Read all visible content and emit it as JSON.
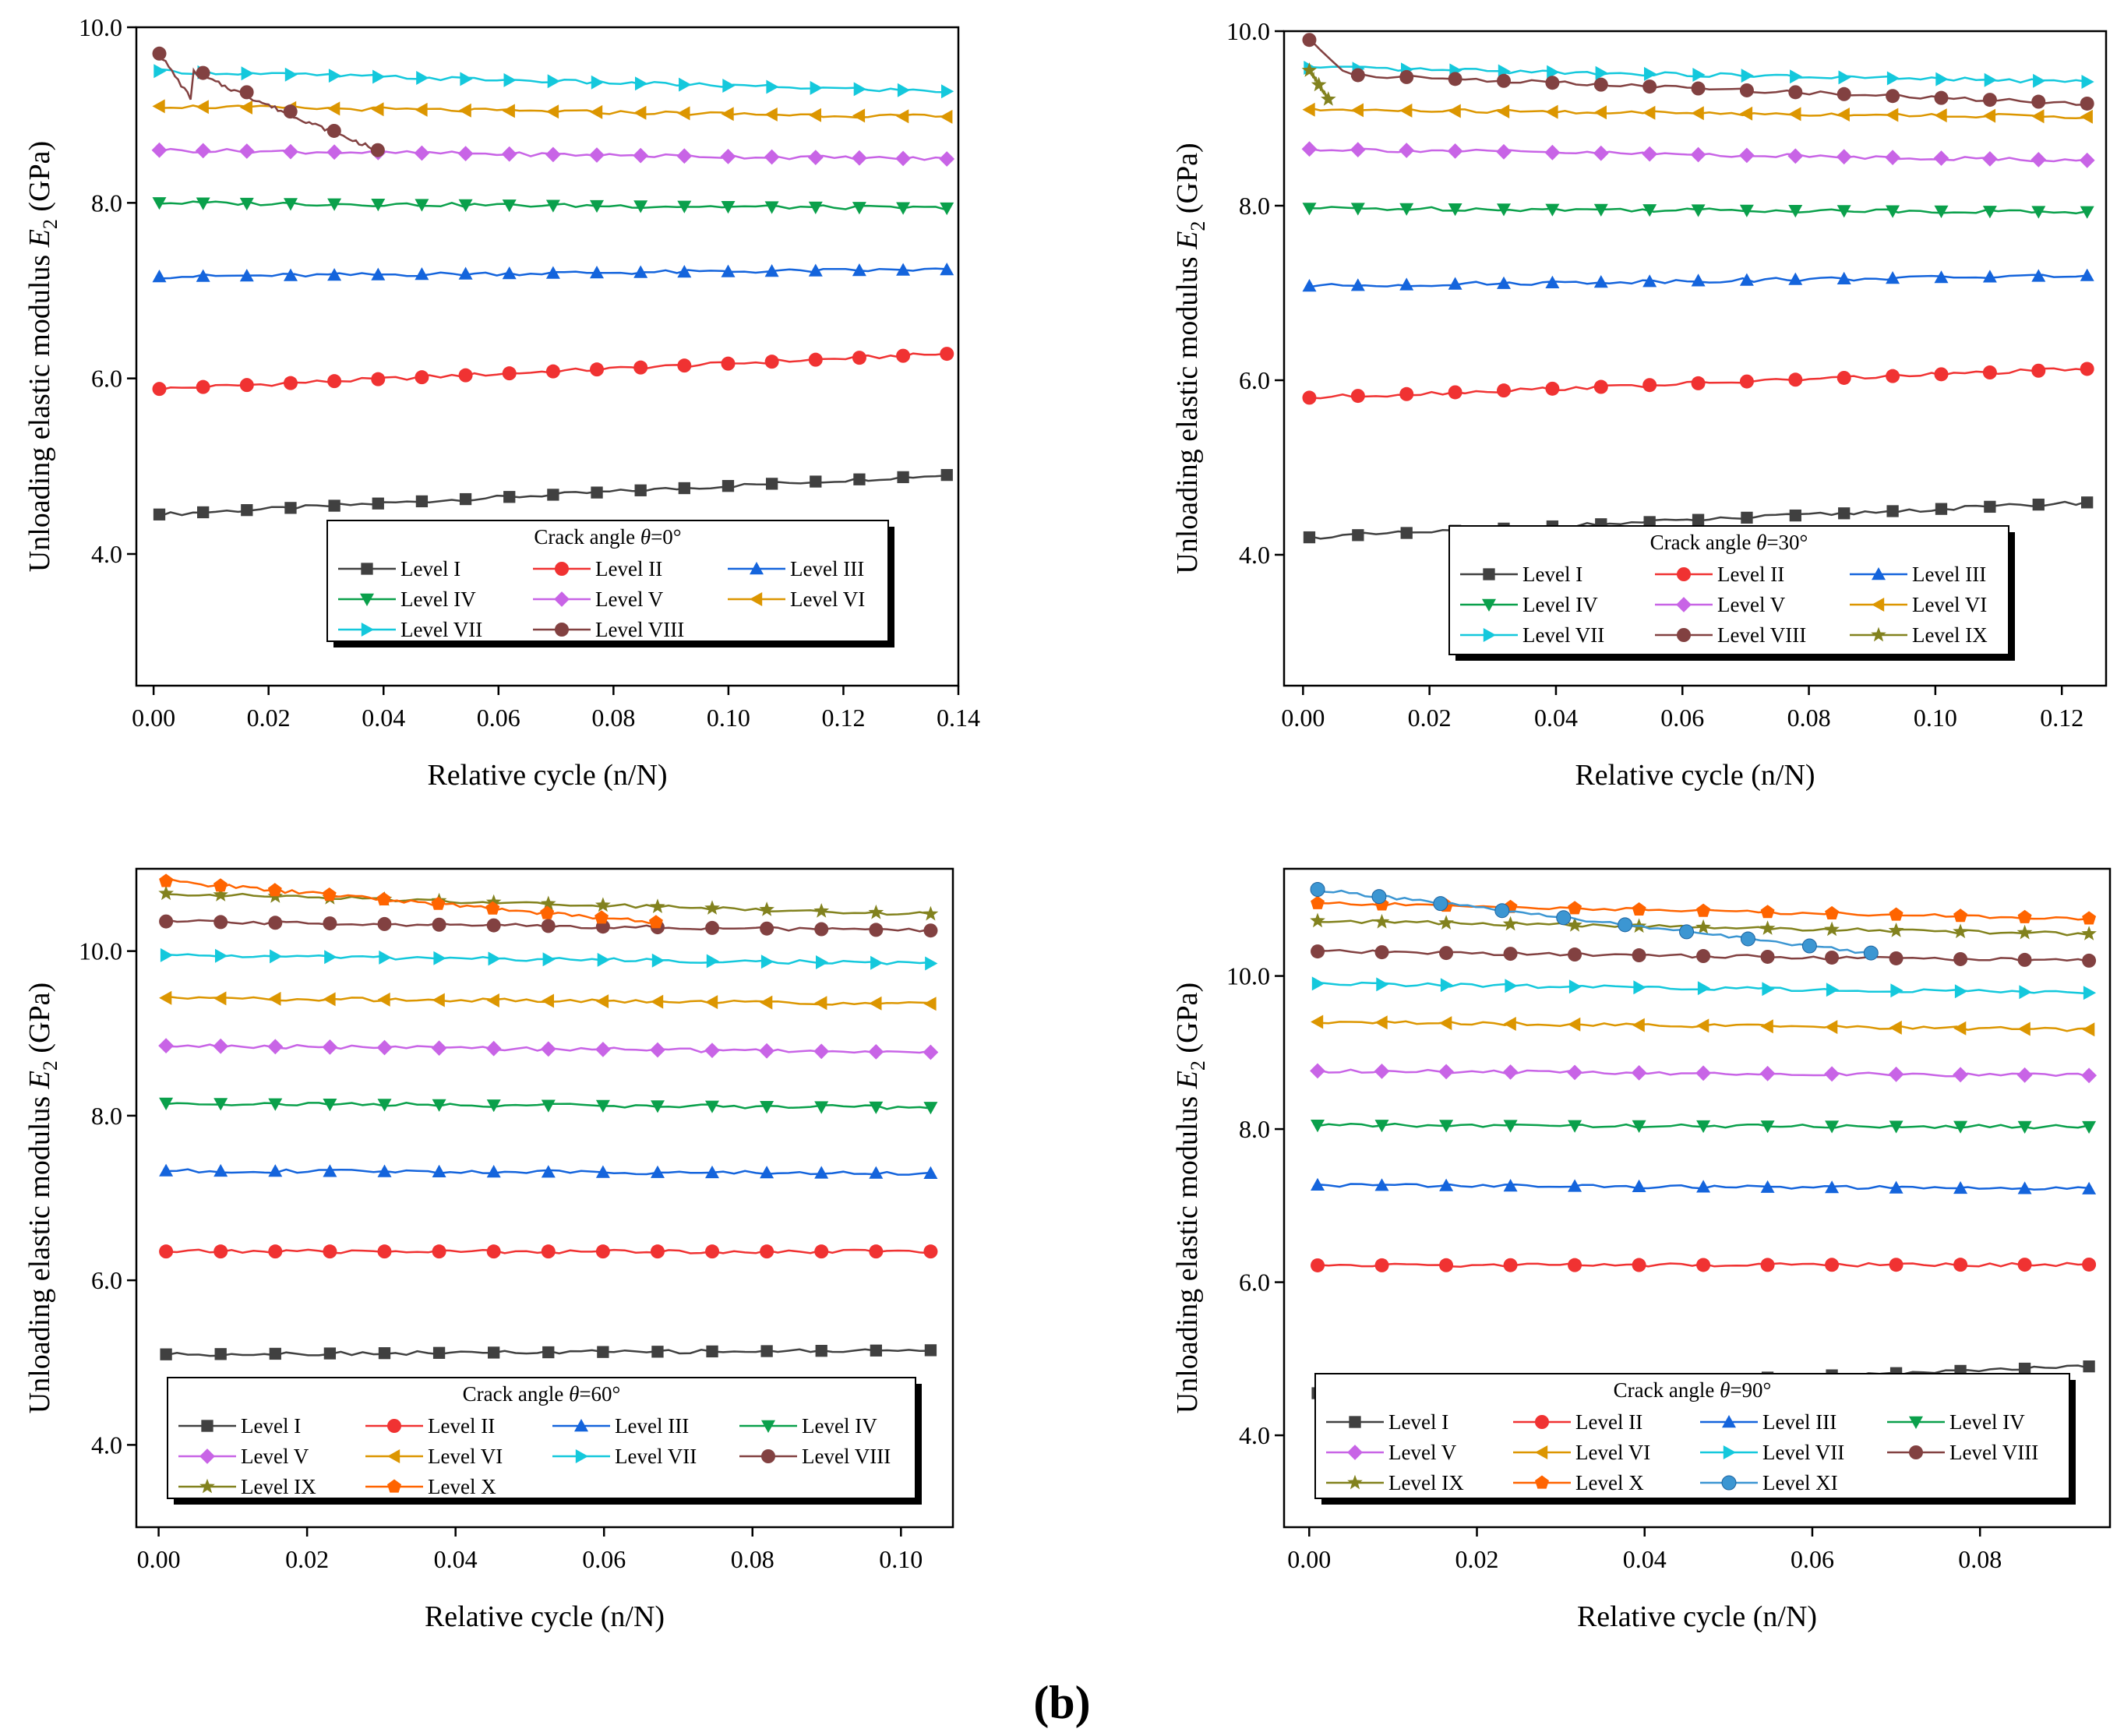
{
  "figure_label": "(b)",
  "colors": {
    "Level I": "#404040",
    "Level II": "#f03232",
    "Level III": "#1464dc",
    "Level IV": "#0aa04b",
    "Level V": "#c864e6",
    "Level VI": "#dc9600",
    "Level VII": "#14c8dc",
    "Level VIII": "#824141",
    "Level IX": "#82821e",
    "Level X": "#ff6400",
    "Level XI": "#3c96d2"
  },
  "chart_data": [
    {
      "type": "line",
      "id": "theta0",
      "title": "Crack angle θ=0°",
      "title_prefix": "Crack angle ",
      "title_var": "θ",
      "title_suffix": "=0°",
      "xlabel": "Relative cycle (n/N)",
      "ylabel_main": "Unloading elastic modulus ",
      "ylabel_var": "E",
      "ylabel_sub": "2",
      "ylabel_unit": " (GPa)",
      "xlim": [
        -0.003,
        0.14
      ],
      "ylim": [
        2.5,
        10.0
      ],
      "xticks": [
        "0.00",
        "0.02",
        "0.04",
        "0.06",
        "0.08",
        "0.10",
        "0.12",
        "0.14"
      ],
      "xtick_values": [
        0,
        0.02,
        0.04,
        0.06,
        0.08,
        0.1,
        0.12,
        0.14
      ],
      "yticks": [
        "4.0",
        "6.0",
        "8.0",
        "10.0"
      ],
      "ytick_values": [
        4.0,
        6.0,
        8.0,
        10.0
      ],
      "legend_columns": 3,
      "legend_location": "bottom-right",
      "series": [
        {
          "name": "Level I",
          "marker": "square",
          "x_start": 0.001,
          "x_end": 0.138,
          "y_start": 4.45,
          "y_end": 4.9
        },
        {
          "name": "Level II",
          "marker": "circle",
          "x_start": 0.001,
          "x_end": 0.138,
          "y_start": 5.88,
          "y_end": 6.28
        },
        {
          "name": "Level III",
          "marker": "triangle-up",
          "x_start": 0.001,
          "x_end": 0.138,
          "y_start": 7.16,
          "y_end": 7.24
        },
        {
          "name": "Level IV",
          "marker": "triangle-down",
          "x_start": 0.001,
          "x_end": 0.138,
          "y_start": 8.0,
          "y_end": 7.94
        },
        {
          "name": "Level V",
          "marker": "diamond",
          "x_start": 0.001,
          "x_end": 0.138,
          "y_start": 8.6,
          "y_end": 8.5
        },
        {
          "name": "Level VI",
          "marker": "triangle-left",
          "x_start": 0.001,
          "x_end": 0.138,
          "y_start": 9.1,
          "y_end": 8.98
        },
        {
          "name": "Level VII",
          "marker": "triangle-right",
          "x_start": 0.001,
          "x_end": 0.138,
          "y_start": 9.5,
          "y_end": 9.27
        },
        {
          "name": "Level VIII",
          "marker": "circle",
          "x_start": 0.001,
          "x_end": 0.039,
          "y_start": 9.7,
          "y_end": 8.6
        }
      ]
    },
    {
      "type": "line",
      "id": "theta30",
      "title": "Crack angle θ=30°",
      "title_prefix": "Crack angle ",
      "title_var": "θ",
      "title_suffix": "=30°",
      "xlabel": "Relative cycle (n/N)",
      "ylabel_main": "Unloading elastic modulus ",
      "ylabel_var": "E",
      "ylabel_sub": "2",
      "ylabel_unit": " (GPa)",
      "xlim": [
        -0.003,
        0.127
      ],
      "ylim": [
        2.5,
        10.0
      ],
      "xticks": [
        "0.00",
        "0.02",
        "0.04",
        "0.06",
        "0.08",
        "0.10",
        "0.12"
      ],
      "xtick_values": [
        0,
        0.02,
        0.04,
        0.06,
        0.08,
        0.1,
        0.12
      ],
      "yticks": [
        "4.0",
        "6.0",
        "8.0",
        "10.0"
      ],
      "ytick_values": [
        4.0,
        6.0,
        8.0,
        10.0
      ],
      "legend_columns": 3,
      "legend_location": "bottom-right",
      "series": [
        {
          "name": "Level I",
          "marker": "square",
          "x_start": 0.001,
          "x_end": 0.124,
          "y_start": 4.2,
          "y_end": 4.6
        },
        {
          "name": "Level II",
          "marker": "circle",
          "x_start": 0.001,
          "x_end": 0.124,
          "y_start": 5.8,
          "y_end": 6.13
        },
        {
          "name": "Level III",
          "marker": "triangle-up",
          "x_start": 0.001,
          "x_end": 0.124,
          "y_start": 7.08,
          "y_end": 7.2
        },
        {
          "name": "Level IV",
          "marker": "triangle-down",
          "x_start": 0.001,
          "x_end": 0.124,
          "y_start": 7.97,
          "y_end": 7.93
        },
        {
          "name": "Level V",
          "marker": "diamond",
          "x_start": 0.001,
          "x_end": 0.124,
          "y_start": 8.65,
          "y_end": 8.52
        },
        {
          "name": "Level VI",
          "marker": "triangle-left",
          "x_start": 0.001,
          "x_end": 0.124,
          "y_start": 9.1,
          "y_end": 9.02
        },
        {
          "name": "Level VII",
          "marker": "triangle-right",
          "x_start": 0.001,
          "x_end": 0.124,
          "y_start": 9.58,
          "y_end": 9.42
        },
        {
          "name": "Level VIII",
          "marker": "circle",
          "x_start": 0.001,
          "x_end": 0.124,
          "y_start": 9.9,
          "y_end": 9.17
        },
        {
          "name": "Level IX",
          "marker": "star",
          "x_start": 0.001,
          "x_end": 0.004,
          "y_start": 9.55,
          "y_end": 9.22
        }
      ]
    },
    {
      "type": "line",
      "id": "theta60",
      "title": "Crack angle θ=60°",
      "title_prefix": "Crack angle ",
      "title_var": "θ",
      "title_suffix": "=60°",
      "xlabel": "Relative cycle (n/N)",
      "ylabel_main": "Unloading elastic modulus ",
      "ylabel_var": "E",
      "ylabel_sub": "2",
      "ylabel_unit": " (GPa)",
      "xlim": [
        -0.003,
        0.107
      ],
      "ylim": [
        3.0,
        11.0
      ],
      "xticks": [
        "0.00",
        "0.02",
        "0.04",
        "0.06",
        "0.08",
        "0.10"
      ],
      "xtick_values": [
        0,
        0.02,
        0.04,
        0.06,
        0.08,
        0.1
      ],
      "yticks": [
        "4.0",
        "6.0",
        "8.0",
        "10.0"
      ],
      "ytick_values": [
        4.0,
        6.0,
        8.0,
        10.0
      ],
      "legend_columns": 4,
      "legend_location": "bottom",
      "series": [
        {
          "name": "Level I",
          "marker": "square",
          "x_start": 0.001,
          "x_end": 0.104,
          "y_start": 5.1,
          "y_end": 5.15
        },
        {
          "name": "Level II",
          "marker": "circle",
          "x_start": 0.001,
          "x_end": 0.104,
          "y_start": 6.35,
          "y_end": 6.35
        },
        {
          "name": "Level III",
          "marker": "triangle-up",
          "x_start": 0.001,
          "x_end": 0.104,
          "y_start": 7.33,
          "y_end": 7.3
        },
        {
          "name": "Level IV",
          "marker": "triangle-down",
          "x_start": 0.001,
          "x_end": 0.104,
          "y_start": 8.15,
          "y_end": 8.1
        },
        {
          "name": "Level V",
          "marker": "diamond",
          "x_start": 0.001,
          "x_end": 0.104,
          "y_start": 8.85,
          "y_end": 8.77
        },
        {
          "name": "Level VI",
          "marker": "triangle-left",
          "x_start": 0.001,
          "x_end": 0.104,
          "y_start": 9.43,
          "y_end": 9.36
        },
        {
          "name": "Level VII",
          "marker": "triangle-right",
          "x_start": 0.001,
          "x_end": 0.104,
          "y_start": 9.95,
          "y_end": 9.85
        },
        {
          "name": "Level VIII",
          "marker": "circle",
          "x_start": 0.001,
          "x_end": 0.104,
          "y_start": 10.36,
          "y_end": 10.25
        },
        {
          "name": "Level IX",
          "marker": "star",
          "x_start": 0.001,
          "x_end": 0.104,
          "y_start": 10.7,
          "y_end": 10.45
        },
        {
          "name": "Level X",
          "marker": "pentagon",
          "x_start": 0.001,
          "x_end": 0.067,
          "y_start": 10.85,
          "y_end": 10.35
        }
      ]
    },
    {
      "type": "line",
      "id": "theta90",
      "title": "Crack angle θ=90°",
      "title_prefix": "Crack angle ",
      "title_var": "θ",
      "title_suffix": "=90°",
      "xlabel": "Relative cycle (n/N)",
      "ylabel_main": "Unloading elastic modulus ",
      "ylabel_var": "E",
      "ylabel_sub": "2",
      "ylabel_unit": " (GPa)",
      "xlim": [
        -0.003,
        0.0955
      ],
      "ylim": [
        2.8,
        11.4
      ],
      "xticks": [
        "0.00",
        "0.02",
        "0.04",
        "0.06",
        "0.08"
      ],
      "xtick_values": [
        0,
        0.02,
        0.04,
        0.06,
        0.08
      ],
      "yticks": [
        "4.0",
        "6.0",
        "8.0",
        "10.0"
      ],
      "ytick_values": [
        4.0,
        6.0,
        8.0,
        10.0
      ],
      "legend_columns": 4,
      "legend_location": "bottom",
      "series": [
        {
          "name": "Level I",
          "marker": "square",
          "x_start": 0.001,
          "x_end": 0.093,
          "y_start": 4.55,
          "y_end": 4.9
        },
        {
          "name": "Level II",
          "marker": "circle",
          "x_start": 0.001,
          "x_end": 0.093,
          "y_start": 6.22,
          "y_end": 6.23
        },
        {
          "name": "Level III",
          "marker": "triangle-up",
          "x_start": 0.001,
          "x_end": 0.093,
          "y_start": 7.27,
          "y_end": 7.22
        },
        {
          "name": "Level IV",
          "marker": "triangle-down",
          "x_start": 0.001,
          "x_end": 0.093,
          "y_start": 8.05,
          "y_end": 8.03
        },
        {
          "name": "Level V",
          "marker": "diamond",
          "x_start": 0.001,
          "x_end": 0.093,
          "y_start": 8.76,
          "y_end": 8.7
        },
        {
          "name": "Level VI",
          "marker": "triangle-left",
          "x_start": 0.001,
          "x_end": 0.093,
          "y_start": 9.4,
          "y_end": 9.3
        },
        {
          "name": "Level VII",
          "marker": "triangle-right",
          "x_start": 0.001,
          "x_end": 0.093,
          "y_start": 9.9,
          "y_end": 9.78
        },
        {
          "name": "Level VIII",
          "marker": "circle",
          "x_start": 0.001,
          "x_end": 0.093,
          "y_start": 10.32,
          "y_end": 10.2
        },
        {
          "name": "Level IX",
          "marker": "star",
          "x_start": 0.001,
          "x_end": 0.093,
          "y_start": 10.72,
          "y_end": 10.55
        },
        {
          "name": "Level X",
          "marker": "pentagon",
          "x_start": 0.001,
          "x_end": 0.093,
          "y_start": 10.95,
          "y_end": 10.75
        },
        {
          "name": "Level XI",
          "marker": "sphere",
          "x_start": 0.001,
          "x_end": 0.067,
          "y_start": 11.13,
          "y_end": 10.3
        }
      ]
    }
  ]
}
